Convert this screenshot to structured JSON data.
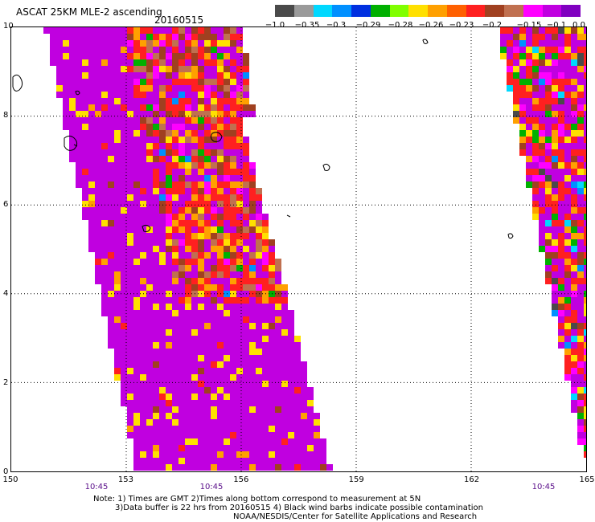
{
  "header": {
    "title": "ASCAT 25KM MLE-2 ascending",
    "date": "20160515"
  },
  "colorbar": {
    "colors": [
      "#4a4a4a",
      "#9a9a9a",
      "#00d8ff",
      "#0090ff",
      "#0030e0",
      "#00b000",
      "#80ff00",
      "#ffe000",
      "#ffa000",
      "#ff6000",
      "#ff2020",
      "#a04020",
      "#c07050",
      "#ff00ff",
      "#c000e0",
      "#8000c0"
    ],
    "labels": [
      "−1.0",
      "−0.35",
      "−0.3",
      "−0.29",
      "−0.28",
      "−0.26",
      "−0.23",
      "−0.2",
      "−0.15",
      "−0.1",
      "0.0"
    ]
  },
  "axes": {
    "lon_labels": [
      "150",
      "153",
      "156",
      "159",
      "162",
      "165"
    ],
    "lat_labels": [
      "0",
      "2",
      "4",
      "6",
      "8",
      "10"
    ],
    "lon_range": [
      150,
      165
    ],
    "lat_range": [
      0,
      10
    ]
  },
  "time_labels": [
    "10:45",
    "10:45",
    "10:45"
  ],
  "notes": {
    "line1": "Note: 1) Times are GMT 2)Times along bottom correspond to measurement at 5N",
    "line2": "3)Data buffer is 22 hrs from 20160515 4) Black wind barbs indicate possible contamination",
    "line3": "NOAA/NESDIS/Center for Satellite Applications and Research"
  }
}
